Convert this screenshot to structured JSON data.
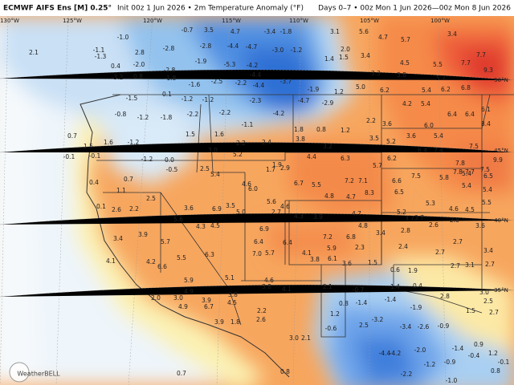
{
  "header": {
    "title": "ECMWF AIFS Ens [M] 0.25°",
    "subtitle": "Init 00z 1 Jun 2026 • 2m Temperature Anomaly (°F)",
    "valid": "Days 0–7 • 00z Mon 1 Jun 2026—00z Mon 8 Jun 2026"
  },
  "lon_labels": [
    "130°W",
    "125°W",
    "120°W",
    "115°W",
    "110°W",
    "105°W",
    "100°W"
  ],
  "lat_labels": [
    "50°N",
    "45°N",
    "40°N",
    "35°N"
  ],
  "logo": "WeatherBELL",
  "anomalies": [
    "2.1",
    "-1.0",
    "-1.1",
    "-1.3",
    "-2.8",
    "-0.7",
    "3.5",
    "4.7",
    "-3.4",
    "-1.8",
    "-4.7",
    "-4.4",
    "-2.8",
    "-3.0",
    "-1.2",
    "2.8",
    "-2.0",
    "0.4",
    "-3.2",
    "0.8",
    "-2.8",
    "-1.8",
    "-1.9",
    "-5.3",
    "-4.2",
    "-2.5",
    "-1.6",
    "-4.4",
    "-3.7",
    "-2.2",
    "-4.4",
    "0.1",
    "-1.5",
    "-1.2",
    "-1.2",
    "-2.3",
    "-4.7",
    "-2.9",
    "-1.9",
    "1.2",
    "5.0",
    "6.2",
    "3.1",
    "5.6",
    "4.7",
    "5.7",
    "3.4",
    "2.0",
    "1.4",
    "1.5",
    "3.4",
    "4.5",
    "5.5",
    "7.7",
    "7.7",
    "3.3",
    "3.8",
    "5.7",
    "9.3",
    "5.4",
    "6.2",
    "6.8",
    "4.2",
    "5.4",
    "6.1",
    "-0.8",
    "-1.2",
    "-1.8",
    "-2.2",
    "-2.2",
    "-1.1",
    "-4.2",
    "1.8",
    "0.8",
    "1.2",
    "2.2",
    "3.6",
    "6.0",
    "6.4",
    "6.4",
    "3.6",
    "5.4",
    "8.4",
    "0.7",
    "1.6",
    "-1.2",
    "1.5",
    "1.6",
    "2.2",
    "2.4",
    "3.8",
    "3.5",
    "5.2",
    "3.2",
    "7.5",
    "9.9",
    "1.5",
    "-0.1",
    "-1.2",
    "0.0",
    "3.0",
    "5.2",
    "6.4",
    "7.4",
    "-0.1",
    "-0.5",
    "2.5",
    "5.4",
    "1.7",
    "1.9",
    "2.9",
    "4.4",
    "6.3",
    "5.7",
    "6.2",
    "7.8",
    "7.8",
    "7.7",
    "7.5",
    "0.7",
    "0.4",
    "4.6",
    "6.0",
    "6.7",
    "5.5",
    "7.2",
    "7.1",
    "6.6",
    "7.5",
    "5.8",
    "5.4",
    "6.5",
    "1.1",
    "2.5",
    "5.6",
    "4.6",
    "4.8",
    "4.7",
    "8.3",
    "6.5",
    "5.4",
    "5.4",
    "0.1",
    "2.6",
    "2.2",
    "3.6",
    "6.9",
    "3.5",
    "5.0",
    "2.7",
    "5.3",
    "4.6",
    "4.5",
    "5.5",
    "5.6",
    "4.3",
    "4.5",
    "4.3",
    "3.9",
    "4.7",
    "4.8",
    "5.2",
    "3.7",
    "3.7",
    "3.9",
    "5.7",
    "6.9",
    "6.4",
    "7.2",
    "6.8",
    "3.4",
    "2.8",
    "2.8",
    "2.6",
    "2.7",
    "3.6",
    "3.4",
    "6.4",
    "6.3",
    "7.0",
    "5.7",
    "4.1",
    "5.9",
    "2.3",
    "2.4",
    "2.7",
    "3.4",
    "4.1",
    "4.2",
    "6.6",
    "5.5",
    "3.8",
    "6.1",
    "3.6",
    "1.5",
    "2.7",
    "3.1",
    "2.7",
    "0.6",
    "1.9",
    "5.9",
    "5.1",
    "4.6",
    "3.8",
    "4.1",
    "2.1",
    "-0.7",
    "0.4",
    "1.4",
    "4.9",
    "2.0",
    "3.0",
    "3.9",
    "3.8",
    "-1.4",
    "-1.4",
    "3.0",
    "0.8",
    "-1.9",
    "2.8",
    "2.5",
    "4.9",
    "6.7",
    "4.5",
    "2.2",
    "1.2",
    "-3.2",
    "1.5",
    "2.7",
    "2.6",
    "3.9",
    "1.8",
    "2.5",
    "-0.6",
    "-3.4",
    "-2.6",
    "-0.9",
    "3.0",
    "2.1",
    "-4.4",
    "-4.2",
    "-2.0",
    "-1.4",
    "0.9",
    "-0.4",
    "1.2",
    "-0.9",
    "-1.2",
    "-0.1",
    "0.8",
    "0.8",
    "0.7",
    "-2.2",
    "-1.0"
  ]
}
